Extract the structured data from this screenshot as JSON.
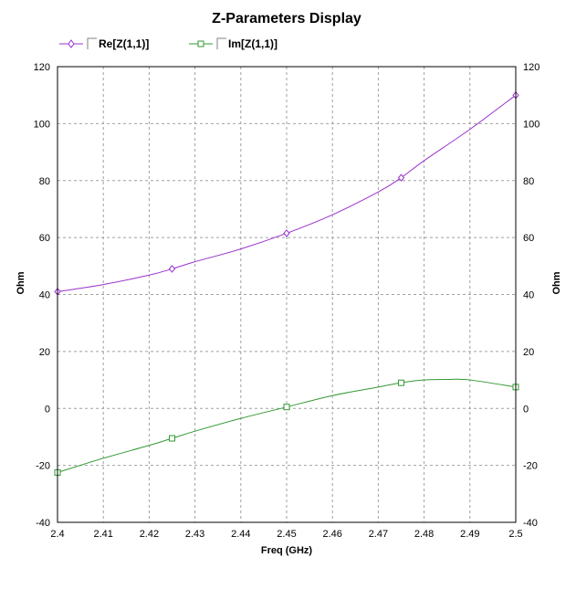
{
  "chart_data": {
    "type": "line",
    "title": "Z-Parameters Display",
    "xlabel": "Freq (GHz)",
    "ylabel": "Ohm",
    "ylabel_right": "Ohm",
    "xlim": [
      2.4,
      2.5
    ],
    "ylim": [
      -40,
      120
    ],
    "x_ticks": [
      "2.4",
      "2.41",
      "2.42",
      "2.43",
      "2.44",
      "2.45",
      "2.46",
      "2.47",
      "2.48",
      "2.49",
      "2.5"
    ],
    "y_ticks": [
      "120",
      "100",
      "80",
      "60",
      "40",
      "20",
      "0",
      "-20",
      "-40"
    ],
    "grid": true,
    "legend_position": "top-left",
    "series": [
      {
        "name": "Re[Z(1,1)]",
        "color": "#9933cc",
        "marker": "diamond",
        "markers_x": [
          2.4,
          2.425,
          2.45,
          2.475,
          2.5
        ],
        "markers_y": [
          41,
          49,
          61.5,
          81,
          110
        ],
        "x": [
          2.4,
          2.41,
          2.42,
          2.425,
          2.43,
          2.44,
          2.45,
          2.46,
          2.47,
          2.475,
          2.48,
          2.49,
          2.5
        ],
        "y": [
          41,
          43.5,
          46.8,
          49,
          51.5,
          56,
          61.5,
          68,
          76,
          81,
          87,
          98,
          110
        ]
      },
      {
        "name": "Im[Z(1,1)]",
        "color": "#339933",
        "marker": "square",
        "markers_x": [
          2.4,
          2.425,
          2.45,
          2.475,
          2.5
        ],
        "markers_y": [
          -22.5,
          -10.5,
          0.5,
          9,
          7.5
        ],
        "x": [
          2.4,
          2.41,
          2.42,
          2.425,
          2.43,
          2.44,
          2.45,
          2.46,
          2.47,
          2.475,
          2.48,
          2.485,
          2.49,
          2.5
        ],
        "y": [
          -22.5,
          -17.5,
          -13,
          -10.5,
          -8,
          -3.5,
          0.5,
          4.5,
          7.5,
          9,
          10,
          10.2,
          10,
          7.5
        ]
      }
    ]
  }
}
